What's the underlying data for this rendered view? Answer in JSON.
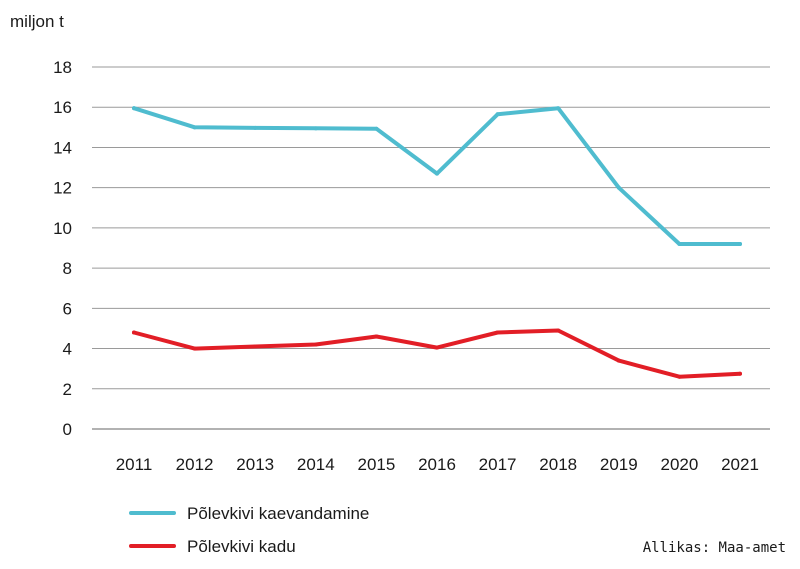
{
  "chart_data": {
    "type": "line",
    "ylabel": "miljon t",
    "ylim": [
      0,
      18
    ],
    "yticks": [
      0,
      2,
      4,
      6,
      8,
      10,
      12,
      14,
      16,
      18
    ],
    "categories": [
      "2011",
      "2012",
      "2013",
      "2014",
      "2015",
      "2016",
      "2017",
      "2018",
      "2019",
      "2020",
      "2021"
    ],
    "series": [
      {
        "name": "Põlevkivi kaevandamine",
        "color": "#4fbccf",
        "values": [
          15.95,
          15.0,
          14.97,
          14.95,
          14.93,
          12.7,
          15.65,
          15.95,
          12.0,
          9.2,
          9.2
        ]
      },
      {
        "name": "Põlevkivi kadu",
        "color": "#e21e26",
        "values": [
          4.8,
          4.0,
          4.1,
          4.2,
          4.6,
          4.05,
          4.8,
          4.9,
          3.4,
          2.6,
          2.75
        ]
      }
    ],
    "grid": true,
    "legend": "bottom-left",
    "source": "Allikas: Maa-amet"
  }
}
